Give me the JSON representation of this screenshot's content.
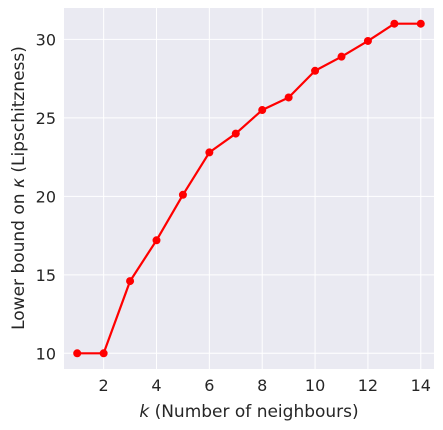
{
  "chart_data": {
    "type": "line",
    "title": "",
    "xlabel": "k (Number of neighbours)",
    "xlabel_var": "k",
    "xlabel_rest": " (Number of neighbours)",
    "ylabel": "Lower bound on κ (Lipschitzness)",
    "ylabel_pre": "Lower bound on ",
    "ylabel_var": "κ",
    "ylabel_post": " (Lipschitzness)",
    "xlim": [
      0.5,
      14.5
    ],
    "ylim": [
      9.0,
      32.0
    ],
    "xticks": [
      2,
      4,
      6,
      8,
      10,
      12,
      14
    ],
    "yticks": [
      10,
      15,
      20,
      25,
      30
    ],
    "grid": true,
    "style": {
      "background": "#EAEAF2",
      "grid_color": "#FFFFFF",
      "line_color": "#FF0000",
      "marker_color": "#FF0000"
    },
    "series": [
      {
        "name": "",
        "x": [
          1,
          2,
          3,
          4,
          5,
          6,
          7,
          8,
          9,
          10,
          11,
          12,
          13,
          14
        ],
        "y": [
          10.0,
          10.0,
          14.6,
          17.2,
          20.1,
          22.8,
          24.0,
          25.5,
          26.3,
          28.0,
          28.9,
          29.9,
          31.0,
          31.0
        ]
      }
    ]
  }
}
